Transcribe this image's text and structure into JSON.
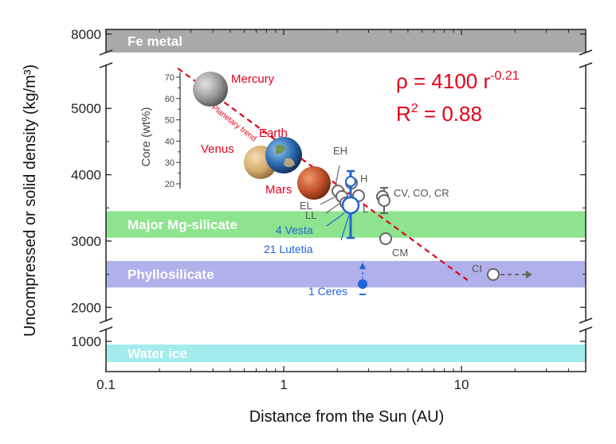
{
  "chart_data": {
    "type": "scatter",
    "x_scale": "log",
    "xlabel": "Distance from the Sun (AU)",
    "ylabel": "Uncompressed or solid density (kg/m³)",
    "xlim": [
      0.1,
      50
    ],
    "ylim_upper": [
      1800,
      5650
    ],
    "ylim_lower": [
      620,
      1150
    ],
    "ylim_top": [
      7600,
      8100
    ],
    "x_ticks": [
      {
        "value": 0.1,
        "label": "0.1"
      },
      {
        "value": 1,
        "label": "1"
      },
      {
        "value": 10,
        "label": "10"
      }
    ],
    "y_ticks": [
      {
        "value": 8000,
        "label": "8000"
      },
      {
        "value": 5000,
        "label": "5000"
      },
      {
        "value": 4000,
        "label": "4000"
      },
      {
        "value": 3000,
        "label": "3000"
      },
      {
        "value": 2000,
        "label": "2000"
      },
      {
        "value": 1000,
        "label": "1000"
      }
    ],
    "bands": [
      {
        "name": "Fe metal",
        "label": "Fe metal",
        "y0": 7650,
        "y1": 8100,
        "color": "#a9a9a9"
      },
      {
        "name": "Major Mg-silicate",
        "label": "Major Mg-silicate",
        "y0": 3050,
        "y1": 3450,
        "color": "#8ee48e"
      },
      {
        "name": "Phyllosilicate",
        "label": "Phyllosilicate",
        "y0": 2300,
        "y1": 2700,
        "color": "#b0b0ea"
      },
      {
        "name": "Water ice",
        "label": "Water ice",
        "y0": 740,
        "y1": 960,
        "color": "#a3ecec"
      }
    ],
    "fit": {
      "text_rho": "ρ = 4100 r",
      "exponent": "-0.21",
      "text_r2": "R",
      "r2_sup": "2",
      "text_r2_val": " = 0.88",
      "x_range": [
        0.27,
        13
      ],
      "color": "#e3001b"
    },
    "trend_label": "Planetary trend",
    "planets": [
      {
        "name": "Mercury",
        "x": 0.39,
        "y": 5200,
        "color": "#9a9a9a"
      },
      {
        "name": "Venus",
        "x": 0.72,
        "y": 4100,
        "color": "#d9b57e"
      },
      {
        "name": "Earth",
        "x": 1.0,
        "y": 4150,
        "color": "#2f6fb5"
      },
      {
        "name": "Mars",
        "x": 1.52,
        "y": 3870,
        "color": "#c0502a"
      }
    ],
    "meteorites": [
      {
        "name": "EH",
        "x": 2.05,
        "y": 3680
      },
      {
        "name": "H",
        "x": 2.55,
        "y": 3800
      },
      {
        "name": "EL",
        "x": 2.05,
        "y": 3570
      },
      {
        "name": "LL",
        "x": 2.2,
        "y": 3520
      },
      {
        "name": "L",
        "x": 2.7,
        "y": 3580
      },
      {
        "name": "CV, CO, CR",
        "x": 3.7,
        "y": 3520,
        "err": 200
      },
      {
        "name": "CM",
        "x": 3.85,
        "y": 2930
      },
      {
        "name": "CI",
        "x": 15,
        "y": 2430
      }
    ],
    "asteroids": [
      {
        "name": "4 Vesta",
        "x": 2.36,
        "y": 3460,
        "err_low": 2400,
        "err_high": 3950
      },
      {
        "name": "21 Lutetia",
        "x": 2.43,
        "y": 3460,
        "err_low": 2600,
        "err_high": 3700
      },
      {
        "name": "1 Ceres",
        "x": 2.77,
        "y": 2280
      }
    ],
    "inset": {
      "title": "Core (wt%)",
      "ticks": [
        "70",
        "60",
        "50",
        "40",
        "30",
        "20"
      ],
      "values": [
        70,
        60,
        50,
        40,
        30,
        20
      ]
    }
  }
}
